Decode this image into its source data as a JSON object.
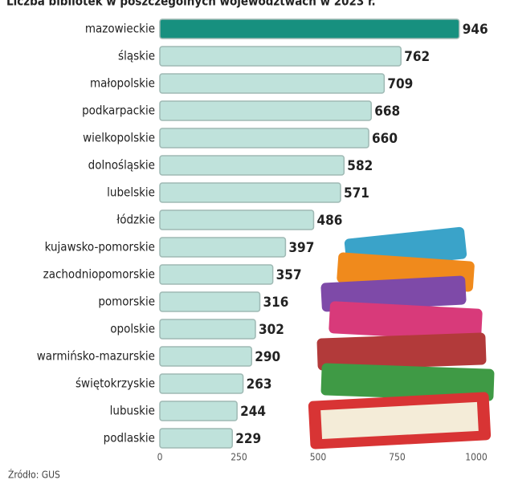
{
  "chart_data": {
    "type": "bar",
    "orientation": "horizontal",
    "title": "Liczba bibliotek w poszczególnych województwach w 2023 r.",
    "categories": [
      "mazowieckie",
      "śląskie",
      "małopolskie",
      "podkarpackie",
      "wielkopolskie",
      "dolnośląskie",
      "lubelskie",
      "łódzkie",
      "kujawsko-pomorskie",
      "zachodniopomorskie",
      "pomorskie",
      "opolskie",
      "warmińsko-mazurskie",
      "świętokrzyskie",
      "lubuskie",
      "podlaskie"
    ],
    "values": [
      946,
      762,
      709,
      668,
      660,
      582,
      571,
      486,
      397,
      357,
      316,
      302,
      290,
      263,
      244,
      229
    ],
    "colors": [
      "#17907f",
      "#bfe2db",
      "#bfe2db",
      "#bfe2db",
      "#bfe2db",
      "#bfe2db",
      "#bfe2db",
      "#bfe2db",
      "#bfe2db",
      "#bfe2db",
      "#bfe2db",
      "#bfe2db",
      "#bfe2db",
      "#bfe2db",
      "#bfe2db",
      "#bfe2db"
    ],
    "xlim": [
      0,
      1000
    ],
    "xticks": [
      0,
      250,
      500,
      750,
      1000
    ],
    "source": "Źródło: GUS"
  }
}
